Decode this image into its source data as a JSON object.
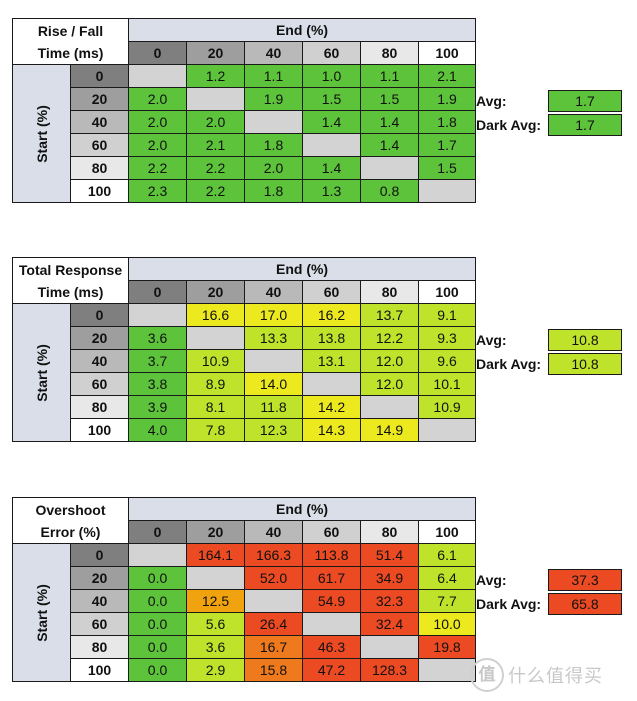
{
  "colors": {
    "green": "#5cc33b",
    "yellow_green": "#bfe32a",
    "yellow": "#ecea1e",
    "orange": "#f1a20f",
    "dark_orange": "#ee7a1d",
    "red": "#ec4a22",
    "blank": "#d3d3d3",
    "header_blue": "#d9dee8"
  },
  "tables": [
    {
      "title_line1": "Rise / Fall",
      "title_line2": "Time (ms)",
      "end_label": "End (%)",
      "start_label": "Start (%)",
      "columns": [
        "0",
        "20",
        "40",
        "60",
        "80",
        "100"
      ],
      "rows": [
        {
          "start": "0",
          "cells": [
            "",
            "1.2",
            "1.1",
            "1.0",
            "1.1",
            "2.1"
          ]
        },
        {
          "start": "20",
          "cells": [
            "2.0",
            "",
            "1.9",
            "1.5",
            "1.5",
            "1.9"
          ]
        },
        {
          "start": "40",
          "cells": [
            "2.0",
            "2.0",
            "",
            "1.4",
            "1.4",
            "1.8"
          ]
        },
        {
          "start": "60",
          "cells": [
            "2.0",
            "2.1",
            "1.8",
            "",
            "1.4",
            "1.7"
          ]
        },
        {
          "start": "80",
          "cells": [
            "2.2",
            "2.2",
            "2.0",
            "1.4",
            "",
            "1.5"
          ]
        },
        {
          "start": "100",
          "cells": [
            "2.3",
            "2.2",
            "1.8",
            "1.3",
            "0.8",
            ""
          ]
        }
      ],
      "cell_colors": [
        [
          "blank",
          "green",
          "green",
          "green",
          "green",
          "green"
        ],
        [
          "green",
          "blank",
          "green",
          "green",
          "green",
          "green"
        ],
        [
          "green",
          "green",
          "blank",
          "green",
          "green",
          "green"
        ],
        [
          "green",
          "green",
          "green",
          "blank",
          "green",
          "green"
        ],
        [
          "green",
          "green",
          "green",
          "green",
          "blank",
          "green"
        ],
        [
          "green",
          "green",
          "green",
          "green",
          "green",
          "blank"
        ]
      ],
      "avg_label": "Avg:",
      "avg_value": "1.7",
      "avg_color": "green",
      "dark_avg_label": "Dark Avg:",
      "dark_avg_value": "1.7",
      "dark_avg_color": "green"
    },
    {
      "title_line1": "Total Response",
      "title_line2": "Time (ms)",
      "end_label": "End (%)",
      "start_label": "Start (%)",
      "columns": [
        "0",
        "20",
        "40",
        "60",
        "80",
        "100"
      ],
      "rows": [
        {
          "start": "0",
          "cells": [
            "",
            "16.6",
            "17.0",
            "16.2",
            "13.7",
            "9.1"
          ]
        },
        {
          "start": "20",
          "cells": [
            "3.6",
            "",
            "13.3",
            "13.8",
            "12.2",
            "9.3"
          ]
        },
        {
          "start": "40",
          "cells": [
            "3.7",
            "10.9",
            "",
            "13.1",
            "12.0",
            "9.6"
          ]
        },
        {
          "start": "60",
          "cells": [
            "3.8",
            "8.9",
            "14.0",
            "",
            "12.0",
            "10.1"
          ]
        },
        {
          "start": "80",
          "cells": [
            "3.9",
            "8.1",
            "11.8",
            "14.2",
            "",
            "10.9"
          ]
        },
        {
          "start": "100",
          "cells": [
            "4.0",
            "7.8",
            "12.3",
            "14.3",
            "14.9",
            ""
          ]
        }
      ],
      "cell_colors": [
        [
          "blank",
          "yellow",
          "yellow",
          "yellow",
          "yellow_green",
          "yellow_green"
        ],
        [
          "green",
          "blank",
          "yellow_green",
          "yellow_green",
          "yellow_green",
          "yellow_green"
        ],
        [
          "green",
          "yellow_green",
          "blank",
          "yellow_green",
          "yellow_green",
          "yellow_green"
        ],
        [
          "green",
          "yellow_green",
          "yellow",
          "blank",
          "yellow_green",
          "yellow_green"
        ],
        [
          "green",
          "yellow_green",
          "yellow_green",
          "yellow",
          "blank",
          "yellow_green"
        ],
        [
          "green",
          "yellow_green",
          "yellow_green",
          "yellow",
          "yellow",
          "blank"
        ]
      ],
      "avg_label": "Avg:",
      "avg_value": "10.8",
      "avg_color": "yellow_green",
      "dark_avg_label": "Dark Avg:",
      "dark_avg_value": "10.8",
      "dark_avg_color": "yellow_green"
    },
    {
      "title_line1": "Overshoot",
      "title_line2": "Error (%)",
      "end_label": "End (%)",
      "start_label": "Start (%)",
      "columns": [
        "0",
        "20",
        "40",
        "60",
        "80",
        "100"
      ],
      "rows": [
        {
          "start": "0",
          "cells": [
            "",
            "164.1",
            "166.3",
            "113.8",
            "51.4",
            "6.1"
          ]
        },
        {
          "start": "20",
          "cells": [
            "0.0",
            "",
            "52.0",
            "61.7",
            "34.9",
            "6.4"
          ]
        },
        {
          "start": "40",
          "cells": [
            "0.0",
            "12.5",
            "",
            "54.9",
            "32.3",
            "7.7"
          ]
        },
        {
          "start": "60",
          "cells": [
            "0.0",
            "5.6",
            "26.4",
            "",
            "32.4",
            "10.0"
          ]
        },
        {
          "start": "80",
          "cells": [
            "0.0",
            "3.6",
            "16.7",
            "46.3",
            "",
            "19.8"
          ]
        },
        {
          "start": "100",
          "cells": [
            "0.0",
            "2.9",
            "15.8",
            "47.2",
            "128.3",
            ""
          ]
        }
      ],
      "cell_colors": [
        [
          "blank",
          "red",
          "red",
          "red",
          "red",
          "yellow_green"
        ],
        [
          "green",
          "blank",
          "red",
          "red",
          "red",
          "yellow_green"
        ],
        [
          "green",
          "orange",
          "blank",
          "red",
          "red",
          "yellow_green"
        ],
        [
          "green",
          "yellow_green",
          "red",
          "blank",
          "red",
          "yellow"
        ],
        [
          "green",
          "yellow_green",
          "dark_orange",
          "red",
          "blank",
          "red"
        ],
        [
          "green",
          "yellow_green",
          "dark_orange",
          "red",
          "red",
          "blank"
        ]
      ],
      "avg_label": "Avg:",
      "avg_value": "37.3",
      "avg_color": "red",
      "dark_avg_label": "Dark Avg:",
      "dark_avg_value": "65.8",
      "dark_avg_color": "red"
    }
  ],
  "watermark": {
    "icon_glyph": "值",
    "text": "什么值得买"
  }
}
